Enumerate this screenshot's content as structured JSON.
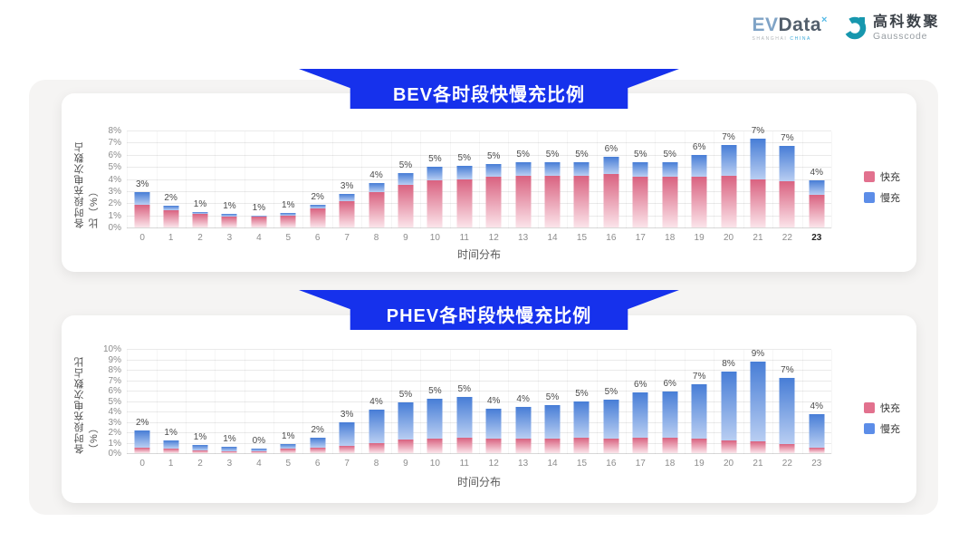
{
  "header": {
    "evdata": {
      "ev": "EV",
      "data": "Data",
      "sup": "×",
      "sub_shanghai": "SHANGHAI",
      "sub_china": "CHINA"
    },
    "gausscode": {
      "cn": "高科数聚",
      "en": "Gausscode",
      "icon_color": "#1797ae"
    }
  },
  "colors": {
    "banner_blue": "#1631ec",
    "panel_gray": "#f5f4f3",
    "fast_top": "#d96280",
    "fast_bottom": "#fbe4ea",
    "slow_top": "#477dd6",
    "slow_bottom": "#b9cef2",
    "fast_legend": "#e2718e",
    "slow_legend": "#5c8de8"
  },
  "chart_data": [
    {
      "type": "bar",
      "stacked": true,
      "title": "BEV各时段快慢充比例",
      "xlabel": "时间分布",
      "ylabel": "各时段充电次数占比（%）",
      "categories": [
        "0",
        "1",
        "2",
        "3",
        "4",
        "5",
        "6",
        "7",
        "8",
        "9",
        "10",
        "11",
        "12",
        "13",
        "14",
        "15",
        "16",
        "17",
        "18",
        "19",
        "20",
        "21",
        "22",
        "23"
      ],
      "emphasized_categories": [
        "23"
      ],
      "series": [
        {
          "name": "快充",
          "legend_color": "#e2718e",
          "color_top": "#d96280",
          "color_bottom": "#fbe4ea",
          "values": [
            1.9,
            1.4,
            1.1,
            0.9,
            0.9,
            1.0,
            1.6,
            2.2,
            2.9,
            3.5,
            3.9,
            4.0,
            4.2,
            4.3,
            4.3,
            4.3,
            4.4,
            4.2,
            4.2,
            4.2,
            4.3,
            4.0,
            3.8,
            2.7
          ]
        },
        {
          "name": "慢充",
          "legend_color": "#5c8de8",
          "color_top": "#477dd6",
          "color_bottom": "#b9cef2",
          "values": [
            1.0,
            0.4,
            0.2,
            0.2,
            0.1,
            0.2,
            0.3,
            0.6,
            0.8,
            1.0,
            1.1,
            1.1,
            1.0,
            1.1,
            1.1,
            1.1,
            1.4,
            1.2,
            1.2,
            1.8,
            2.5,
            3.3,
            2.9,
            1.2
          ]
        }
      ],
      "total_labels": [
        "3%",
        "2%",
        "1%",
        "1%",
        "1%",
        "1%",
        "2%",
        "3%",
        "4%",
        "5%",
        "5%",
        "5%",
        "5%",
        "5%",
        "5%",
        "5%",
        "6%",
        "5%",
        "5%",
        "6%",
        "7%",
        "7%",
        "7%",
        "4%"
      ],
      "ylim": [
        0,
        8
      ],
      "ytick_step": 1,
      "ytick_suffix": "%",
      "grid": true,
      "legend_position": "right"
    },
    {
      "type": "bar",
      "stacked": true,
      "title": "PHEV各时段快慢充比例",
      "xlabel": "时间分布",
      "ylabel": "各时段充电次数占比（%）",
      "categories": [
        "0",
        "1",
        "2",
        "3",
        "4",
        "5",
        "6",
        "7",
        "8",
        "9",
        "10",
        "11",
        "12",
        "13",
        "14",
        "15",
        "16",
        "17",
        "18",
        "19",
        "20",
        "21",
        "22",
        "23"
      ],
      "emphasized_categories": [],
      "series": [
        {
          "name": "快充",
          "legend_color": "#e2718e",
          "color_top": "#d96280",
          "color_bottom": "#fbe4ea",
          "values": [
            0.5,
            0.4,
            0.3,
            0.2,
            0.2,
            0.4,
            0.5,
            0.7,
            1.0,
            1.3,
            1.4,
            1.5,
            1.4,
            1.4,
            1.4,
            1.5,
            1.4,
            1.5,
            1.5,
            1.4,
            1.2,
            1.1,
            0.9,
            0.5
          ]
        },
        {
          "name": "慢充",
          "legend_color": "#5c8de8",
          "color_top": "#477dd6",
          "color_bottom": "#b9cef2",
          "values": [
            1.7,
            0.8,
            0.5,
            0.4,
            0.2,
            0.5,
            1.0,
            2.3,
            3.2,
            3.6,
            3.8,
            3.9,
            2.9,
            3.0,
            3.2,
            3.5,
            3.7,
            4.3,
            4.4,
            5.2,
            6.6,
            7.7,
            6.3,
            3.2
          ]
        }
      ],
      "total_labels": [
        "2%",
        "1%",
        "1%",
        "1%",
        "0%",
        "1%",
        "2%",
        "3%",
        "4%",
        "5%",
        "5%",
        "5%",
        "4%",
        "4%",
        "5%",
        "5%",
        "5%",
        "6%",
        "6%",
        "7%",
        "8%",
        "9%",
        "7%",
        "4%"
      ],
      "ylim": [
        0,
        10
      ],
      "ytick_step": 1,
      "ytick_suffix": "%",
      "grid": true,
      "legend_position": "right"
    }
  ]
}
